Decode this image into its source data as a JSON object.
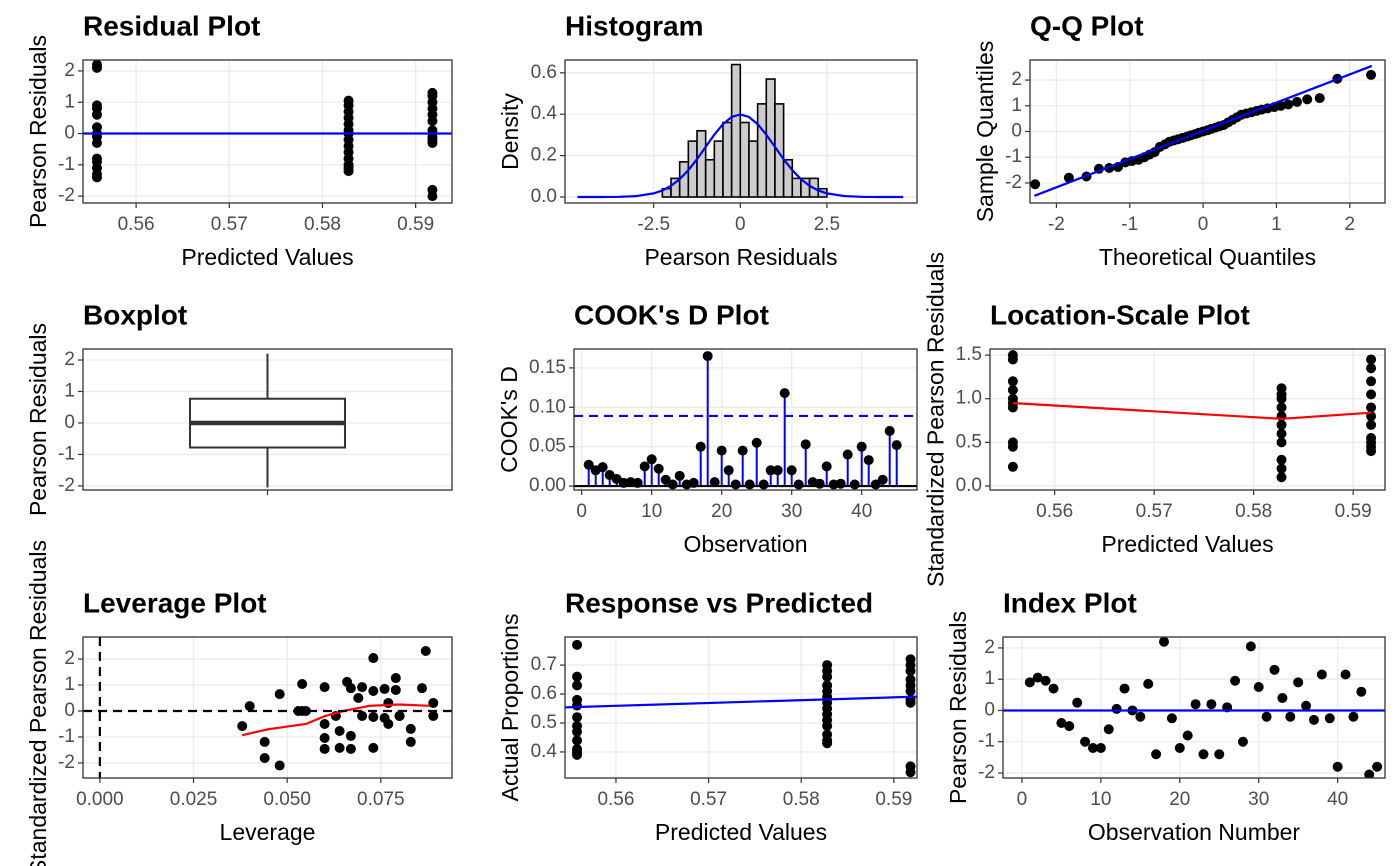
{
  "chart_data": [
    {
      "type": "scatter",
      "title": "Residual Plot",
      "xlabel": "Predicted Values",
      "ylabel": "Pearson Residuals",
      "x": [
        0.5558,
        0.5558,
        0.5558,
        0.5558,
        0.5558,
        0.5558,
        0.5558,
        0.5558,
        0.5558,
        0.5558,
        0.5558,
        0.5558,
        0.5558,
        0.5558,
        0.5828,
        0.5828,
        0.5828,
        0.5828,
        0.5828,
        0.5828,
        0.5828,
        0.5828,
        0.5828,
        0.5828,
        0.5828,
        0.5828,
        0.5828,
        0.5828,
        0.5918,
        0.5918,
        0.5918,
        0.5918,
        0.5918,
        0.5918,
        0.5918,
        0.5918,
        0.5918,
        0.5918,
        0.5918,
        0.5918
      ],
      "y": [
        2.2,
        2.1,
        0.9,
        0.8,
        0.6,
        0.2,
        0.0,
        -0.1,
        -0.3,
        -0.8,
        -0.9,
        -1.1,
        -1.3,
        -1.4,
        1.05,
        0.9,
        0.7,
        0.5,
        0.3,
        0.1,
        0.0,
        -0.2,
        -0.4,
        -0.6,
        -0.8,
        -1.0,
        -1.1,
        -1.2,
        1.3,
        1.2,
        1.0,
        0.8,
        0.6,
        0.4,
        0.1,
        -0.1,
        -0.2,
        -0.3,
        -1.8,
        -2.0
      ],
      "color": "#000000",
      "hlines": [
        {
          "value": 0,
          "color": "#0000ff",
          "dash": false
        }
      ],
      "xlim": [
        0.5543,
        0.5939
      ],
      "xticks": [
        0.56,
        0.57,
        0.58,
        0.59
      ],
      "ylim": [
        -2.22,
        2.35
      ],
      "yticks": [
        -2,
        -1,
        0,
        1,
        2
      ],
      "grid": true
    },
    {
      "type": "histogram",
      "title": "Histogram",
      "xlabel": "Pearson Residuals",
      "ylabel": "Density",
      "bins": [
        -2.25,
        -2,
        -1.75,
        -1.5,
        -1.25,
        -1,
        -0.75,
        -0.5,
        -0.25,
        0,
        0.25,
        0.5,
        0.75,
        1,
        1.25,
        1.5,
        1.75,
        2,
        2.25,
        2.5
      ],
      "values": [
        0.04,
        0.09,
        0.17,
        0.27,
        0.32,
        0.18,
        0.27,
        0.36,
        0.64,
        0.36,
        0.27,
        0.45,
        0.57,
        0.45,
        0.18,
        0.09,
        0.09,
        0.09,
        0.04
      ],
      "color": "#cccccc",
      "lines": [
        {
          "x": [
            -4.7,
            -4.5,
            -4,
            -3.5,
            -3,
            -2.5,
            -2.25,
            -2,
            -1.75,
            -1.5,
            -1.25,
            -1,
            -0.75,
            -0.5,
            -0.25,
            0,
            0.25,
            0.5,
            0.75,
            1,
            1.25,
            1.5,
            1.75,
            2,
            2.25,
            2.5,
            3,
            3.5,
            4,
            4.5,
            4.7
          ],
          "y": [
            0,
            0,
            0.0001,
            0.0009,
            0.0044,
            0.0175,
            0.0317,
            0.054,
            0.0863,
            0.1295,
            0.1826,
            0.242,
            0.3011,
            0.352,
            0.3867,
            0.399,
            0.3867,
            0.352,
            0.3011,
            0.242,
            0.1826,
            0.1295,
            0.0863,
            0.054,
            0.0317,
            0.0175,
            0.0044,
            0.0009,
            0.0001,
            0,
            0
          ],
          "color": "#0000ff",
          "dash": false
        }
      ],
      "xlim": [
        -5.06,
        5.1
      ],
      "xticks": [
        -2.5,
        0.0,
        2.5
      ],
      "ylim": [
        -0.029,
        0.662
      ],
      "yticks": [
        {
          "value": 0,
          "label": "0.0"
        },
        0.2,
        0.4,
        0.6
      ],
      "grid": true
    },
    {
      "type": "scatter",
      "title": "Q-Q Plot",
      "xlabel": "Theoretical Quantiles",
      "ylabel": "Sample Quantiles",
      "x": [
        -2.29,
        -1.83,
        -1.59,
        -1.42,
        -1.28,
        -1.16,
        -1.06,
        -0.97,
        -0.88,
        -0.8,
        -0.73,
        -0.66,
        -0.59,
        -0.52,
        -0.46,
        -0.4,
        -0.34,
        -0.28,
        -0.22,
        -0.17,
        -0.11,
        -0.06,
        0,
        0.06,
        0.11,
        0.17,
        0.22,
        0.28,
        0.34,
        0.4,
        0.46,
        0.52,
        0.59,
        0.66,
        0.73,
        0.8,
        0.88,
        0.97,
        1.06,
        1.16,
        1.28,
        1.42,
        1.59,
        1.83,
        2.29
      ],
      "y": [
        -2.05,
        -1.8,
        -1.75,
        -1.45,
        -1.42,
        -1.38,
        -1.2,
        -1.15,
        -1.1,
        -1.0,
        -0.9,
        -0.8,
        -0.6,
        -0.5,
        -0.4,
        -0.35,
        -0.3,
        -0.25,
        -0.2,
        -0.15,
        -0.1,
        -0.05,
        0.0,
        0.05,
        0.1,
        0.15,
        0.2,
        0.25,
        0.35,
        0.45,
        0.55,
        0.65,
        0.7,
        0.75,
        0.8,
        0.85,
        0.9,
        0.95,
        1.0,
        1.05,
        1.15,
        1.25,
        1.3,
        2.05,
        2.2
      ],
      "color": "#000000",
      "lines": [
        {
          "x": [
            -2.3,
            2.3
          ],
          "y": [
            -2.5,
            2.55
          ],
          "color": "#0000ff",
          "dash": false
        }
      ],
      "xlim": [
        -2.36,
        2.48
      ],
      "xticks": [
        -2,
        -1,
        0,
        1,
        2
      ],
      "ylim": [
        -2.78,
        2.78
      ],
      "yticks": [
        -2,
        -1,
        0,
        1,
        2
      ],
      "grid": true
    },
    {
      "type": "box",
      "title": "Boxplot",
      "ylabel": "Pearson Residuals",
      "box": {
        "min": -2.05,
        "q1": -0.78,
        "median": 0,
        "q3": 0.77,
        "max": 2.2
      },
      "color": "#ffffff",
      "ylim": [
        -2.13,
        2.35
      ],
      "yticks": [
        -2,
        -1,
        0,
        1,
        2
      ],
      "grid": true
    },
    {
      "type": "stem",
      "title": "COOK's D Plot",
      "xlabel": "Observation",
      "ylabel": "COOK's D",
      "x": [
        1,
        2,
        3,
        4,
        5,
        6,
        7,
        8,
        9,
        10,
        11,
        12,
        13,
        14,
        15,
        16,
        17,
        18,
        19,
        20,
        21,
        22,
        23,
        24,
        25,
        26,
        27,
        28,
        29,
        30,
        31,
        32,
        33,
        34,
        35,
        36,
        37,
        38,
        39,
        40,
        41,
        42,
        43,
        44,
        45
      ],
      "y": [
        0.027,
        0.02,
        0.024,
        0.014,
        0.009,
        0.004,
        0.005,
        0.004,
        0.025,
        0.034,
        0.022,
        0.008,
        0.002,
        0.013,
        0.002,
        0.004,
        0.05,
        0.165,
        0.005,
        0.045,
        0.02,
        0.002,
        0.045,
        0.002,
        0.055,
        0.002,
        0.02,
        0.02,
        0.118,
        0.02,
        0.002,
        0.053,
        0.005,
        0.003,
        0.025,
        0.002,
        0.003,
        0.04,
        0.002,
        0.05,
        0.033,
        0.002,
        0.008,
        0.07,
        0.052
      ],
      "color": "#0000ff",
      "hlines": [
        {
          "value": 0.089,
          "color": "#0000ff",
          "dash": true
        },
        {
          "value": 0,
          "color": "#000000",
          "dash": false
        }
      ],
      "xlim": [
        -1.1,
        47.9
      ],
      "xticks": [
        0,
        10,
        20,
        30,
        40
      ],
      "ylim": [
        -0.005,
        0.174
      ],
      "yticks": [
        {
          "value": 0,
          "label": "0.00"
        },
        0.05,
        {
          "value": 0.1,
          "label": "0.10"
        },
        0.15
      ],
      "grid": true
    },
    {
      "type": "scatter",
      "title": "Location-Scale Plot",
      "xlabel": "Predicted Values",
      "ylabel": "Standardized Pearson Residuals",
      "x": [
        0.5558,
        0.5558,
        0.5558,
        0.5558,
        0.5558,
        0.5558,
        0.5558,
        0.5558,
        0.5558,
        0.5558,
        0.5828,
        0.5828,
        0.5828,
        0.5828,
        0.5828,
        0.5828,
        0.5828,
        0.5828,
        0.5828,
        0.5828,
        0.5828,
        0.5918,
        0.5918,
        0.5918,
        0.5918,
        0.5918,
        0.5918,
        0.5918,
        0.5918,
        0.5918,
        0.5918,
        0.5918
      ],
      "y": [
        1.5,
        1.45,
        1.2,
        1.1,
        1.0,
        0.95,
        0.9,
        0.5,
        0.45,
        0.22,
        1.12,
        1.05,
        1.0,
        0.9,
        0.8,
        0.7,
        0.6,
        0.5,
        0.3,
        0.2,
        0.1,
        1.45,
        1.35,
        1.2,
        1.05,
        0.9,
        0.8,
        0.7,
        0.55,
        0.5,
        0.45,
        0.4
      ],
      "color": "#000000",
      "lines": [
        {
          "x": [
            0.5558,
            0.5828,
            0.5918
          ],
          "y": [
            0.95,
            0.77,
            0.84
          ],
          "color": "#ff0000",
          "dash": false
        }
      ],
      "xlim": [
        0.5535,
        0.5932
      ],
      "xticks": [
        0.56,
        0.57,
        0.58,
        0.59
      ],
      "ylim": [
        -0.046,
        1.57
      ],
      "yticks": [
        {
          "value": 0,
          "label": "0.0"
        },
        0.5,
        {
          "value": 1,
          "label": "1.0"
        },
        1.5
      ],
      "grid": true
    },
    {
      "type": "scatter",
      "title": "Leverage Plot",
      "xlabel": "Leverage",
      "ylabel": "Standardized Pearson Residuals",
      "x": [
        0.038,
        0.04,
        0.044,
        0.044,
        0.048,
        0.048,
        0.053,
        0.054,
        0.054,
        0.055,
        0.06,
        0.06,
        0.06,
        0.06,
        0.063,
        0.064,
        0.064,
        0.066,
        0.067,
        0.067,
        0.067,
        0.069,
        0.07,
        0.07,
        0.073,
        0.073,
        0.073,
        0.073,
        0.076,
        0.076,
        0.077,
        0.077,
        0.079,
        0.08,
        0.079,
        0.08,
        0.083,
        0.083,
        0.087,
        0.086,
        0.089,
        0.089
      ],
      "y": [
        -0.58,
        0.19,
        -1.19,
        -1.81,
        -2.1,
        0.65,
        0,
        0,
        1.04,
        0,
        0.92,
        -0.5,
        -1.04,
        -1.46,
        -0.19,
        -0.77,
        -1.42,
        1.12,
        0.88,
        -0.96,
        -1.46,
        0.5,
        0.92,
        -0.19,
        0.77,
        2.04,
        -0.23,
        -1.42,
        0.85,
        -0.27,
        0.31,
        -0.5,
        1.27,
        -0.19,
        0.81,
        -0.19,
        -0.69,
        -1.19,
        2.31,
        0.88,
        -0.19,
        0.31
      ],
      "color": "#000000",
      "lines": [
        {
          "x": [
            0.038,
            0.045,
            0.055,
            0.06,
            0.065,
            0.072,
            0.08,
            0.088
          ],
          "y": [
            -0.93,
            -0.7,
            -0.5,
            -0.2,
            0.0,
            0.2,
            0.25,
            0.2
          ],
          "color": "#ff0000",
          "dash": false
        }
      ],
      "hlines": [
        {
          "value": 0,
          "color": "#000000",
          "dash": true
        }
      ],
      "vlines": [
        {
          "value": 0,
          "color": "#000000",
          "dash": true
        }
      ],
      "xlim": [
        -0.0045,
        0.094
      ],
      "xticks": [
        {
          "value": 0,
          "label": "0.000"
        },
        0.025,
        {
          "value": 0.05,
          "label": "0.050"
        },
        0.075
      ],
      "ylim": [
        -2.58,
        2.85
      ],
      "yticks": [
        -2,
        -1,
        0,
        1,
        2
      ],
      "grid": true
    },
    {
      "type": "scatter",
      "title": "Response vs Predicted",
      "xlabel": "Predicted Values",
      "ylabel": "Actual Proportions",
      "x": [
        0.5558,
        0.5558,
        0.5558,
        0.5558,
        0.5558,
        0.5558,
        0.5558,
        0.5558,
        0.5558,
        0.5558,
        0.5558,
        0.5558,
        0.5828,
        0.5828,
        0.5828,
        0.5828,
        0.5828,
        0.5828,
        0.5828,
        0.5828,
        0.5828,
        0.5828,
        0.5828,
        0.5828,
        0.5828,
        0.5828,
        0.5918,
        0.5918,
        0.5918,
        0.5918,
        0.5918,
        0.5918,
        0.5918,
        0.5918,
        0.5918,
        0.5918
      ],
      "y": [
        0.77,
        0.66,
        0.63,
        0.58,
        0.56,
        0.52,
        0.49,
        0.47,
        0.44,
        0.41,
        0.4,
        0.39,
        0.7,
        0.68,
        0.66,
        0.63,
        0.61,
        0.59,
        0.57,
        0.55,
        0.53,
        0.51,
        0.49,
        0.46,
        0.44,
        0.43,
        0.72,
        0.7,
        0.68,
        0.65,
        0.63,
        0.61,
        0.58,
        0.57,
        0.35,
        0.33
      ],
      "color": "#000000",
      "lines": [
        {
          "x": [
            0.5545,
            0.5925
          ],
          "y": [
            0.554,
            0.591
          ],
          "color": "#0000ff",
          "dash": false
        }
      ],
      "xlim": [
        0.5545,
        0.5925
      ],
      "xticks": [
        0.56,
        0.57,
        0.58,
        0.59
      ],
      "ylim": [
        0.31,
        0.797
      ],
      "yticks": [
        0.4,
        0.5,
        0.6,
        0.7
      ],
      "grid": true
    },
    {
      "type": "scatter",
      "title": "Index Plot",
      "xlabel": "Observation Number",
      "ylabel": "Pearson Residuals",
      "x": [
        1,
        2,
        3,
        4,
        5,
        6,
        7,
        8,
        9,
        10,
        11,
        12,
        13,
        14,
        15,
        16,
        17,
        18,
        19,
        20,
        21,
        22,
        23,
        24,
        25,
        26,
        27,
        28,
        29,
        30,
        31,
        32,
        33,
        34,
        35,
        36,
        37,
        38,
        39,
        40,
        41,
        42,
        43,
        44,
        45
      ],
      "y": [
        0.9,
        1.05,
        0.95,
        0.7,
        -0.4,
        -0.5,
        0.25,
        -1.0,
        -1.2,
        -1.2,
        -0.6,
        0.05,
        0.7,
        0.0,
        -0.2,
        0.85,
        -1.4,
        2.2,
        -0.25,
        -1.2,
        -0.8,
        0.2,
        -1.4,
        0.2,
        -1.4,
        0.1,
        0.95,
        -1.0,
        2.05,
        0.75,
        -0.2,
        1.3,
        0.4,
        -0.2,
        0.9,
        0.15,
        -0.3,
        1.15,
        -0.25,
        -1.8,
        1.15,
        -0.2,
        0.6,
        -2.05,
        -1.8
      ],
      "color": "#000000",
      "hlines": [
        {
          "value": 0,
          "color": "#0000ff",
          "dash": false
        }
      ],
      "xlim": [
        -2.4,
        46.0
      ],
      "xticks": [
        0,
        10,
        20,
        30,
        40
      ],
      "ylim": [
        -2.16,
        2.35
      ],
      "yticks": [
        -2,
        -1,
        0,
        1,
        2
      ],
      "grid": true
    }
  ]
}
